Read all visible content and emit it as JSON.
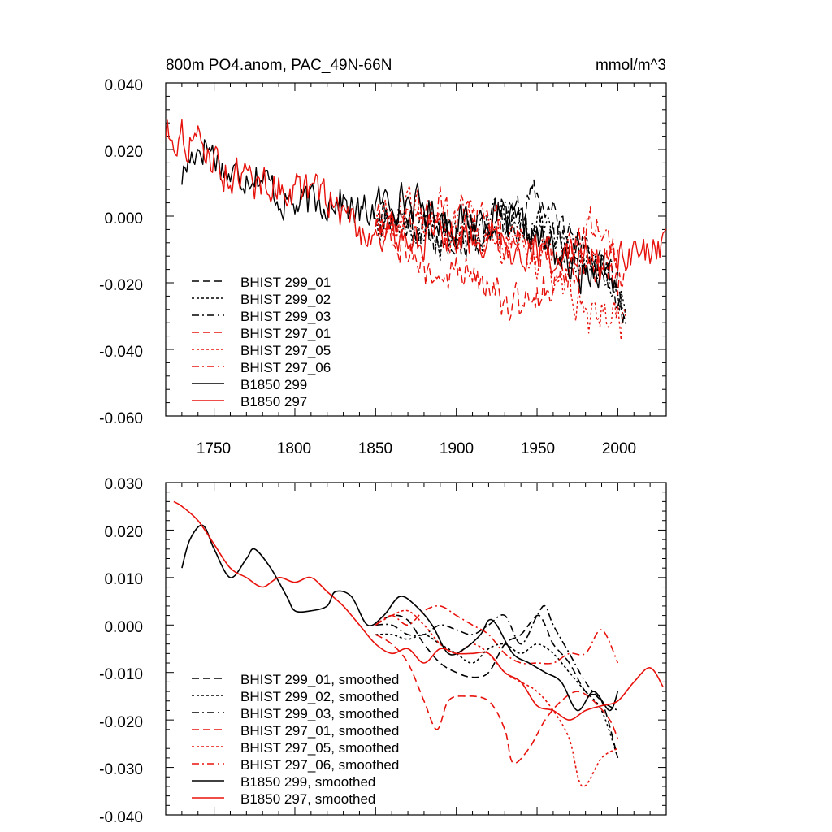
{
  "colors": {
    "black": "#000000",
    "red": "#e8120c"
  },
  "chart_data": [
    {
      "type": "line",
      "title": "800m PO4.anom, PAC_49N-66N",
      "units": "mmol/m^3",
      "xlim": [
        1720,
        2030
      ],
      "ylim": [
        -0.06,
        0.04
      ],
      "xticks": [
        1750,
        1800,
        1850,
        1900,
        1950,
        2000
      ],
      "xtick_labels": [
        "1750",
        "1800",
        "1850",
        "1900",
        "1950",
        "2000"
      ],
      "yticks": [
        -0.06,
        -0.04,
        -0.02,
        0.0,
        0.02,
        0.04
      ],
      "ytick_labels": [
        "-0.060",
        "-0.040",
        "-0.020",
        "0.000",
        "0.020",
        "0.040"
      ],
      "legend_position": "bottom-left",
      "series": [
        {
          "name": "BHIST 299_01",
          "color": "black",
          "dash": "dash",
          "seed": 11,
          "noise": 0.005,
          "x": [
            1850,
            1870,
            1890,
            1910,
            1930,
            1950,
            1970,
            1990,
            2005
          ],
          "y": [
            0.002,
            0.0,
            -0.008,
            -0.006,
            -0.002,
            0.006,
            -0.006,
            -0.016,
            -0.03
          ]
        },
        {
          "name": "BHIST 299_02",
          "color": "black",
          "dash": "dot",
          "seed": 12,
          "noise": 0.005,
          "x": [
            1850,
            1870,
            1890,
            1910,
            1930,
            1950,
            1970,
            1990,
            2005
          ],
          "y": [
            0.0,
            -0.004,
            -0.008,
            -0.004,
            -0.002,
            -0.004,
            -0.012,
            -0.016,
            -0.028
          ]
        },
        {
          "name": "BHIST 299_03",
          "color": "black",
          "dash": "dashdot",
          "seed": 13,
          "noise": 0.005,
          "x": [
            1850,
            1870,
            1890,
            1910,
            1930,
            1950,
            1970,
            1990,
            2005
          ],
          "y": [
            0.0,
            -0.002,
            -0.004,
            -0.006,
            0.0,
            -0.004,
            -0.008,
            -0.016,
            -0.026
          ]
        },
        {
          "name": "BHIST 297_01",
          "color": "red",
          "dash": "dash",
          "seed": 14,
          "noise": 0.006,
          "x": [
            1850,
            1870,
            1885,
            1900,
            1920,
            1935,
            1950,
            1970,
            1990,
            2005
          ],
          "y": [
            0.0,
            -0.008,
            -0.022,
            -0.016,
            -0.016,
            -0.028,
            -0.022,
            -0.018,
            -0.014,
            -0.022
          ]
        },
        {
          "name": "BHIST 297_05",
          "color": "red",
          "dash": "dot",
          "seed": 15,
          "noise": 0.006,
          "x": [
            1850,
            1870,
            1890,
            1910,
            1930,
            1950,
            1970,
            1980,
            1990,
            2005
          ],
          "y": [
            0.0,
            0.0,
            -0.002,
            -0.004,
            -0.008,
            -0.012,
            -0.02,
            -0.034,
            -0.03,
            -0.032
          ]
        },
        {
          "name": "BHIST 297_06",
          "color": "red",
          "dash": "dashdot",
          "seed": 16,
          "noise": 0.006,
          "x": [
            1850,
            1870,
            1890,
            1910,
            1930,
            1950,
            1970,
            1985,
            2000
          ],
          "y": [
            0.0,
            0.0,
            0.002,
            -0.002,
            -0.006,
            -0.008,
            -0.01,
            -0.002,
            -0.008
          ]
        },
        {
          "name": "B1850 299",
          "color": "black",
          "dash": "solid",
          "seed": 17,
          "noise": 0.005,
          "x": [
            1730,
            1738,
            1745,
            1760,
            1775,
            1790,
            1800,
            1815,
            1825,
            1840,
            1850,
            1865,
            1880,
            1900,
            1920,
            1940,
            1960,
            1975,
            1990,
            2000
          ],
          "y": [
            0.012,
            0.02,
            0.022,
            0.012,
            0.014,
            0.006,
            0.003,
            0.004,
            0.006,
            0.0,
            0.003,
            0.006,
            0.002,
            -0.002,
            0.0,
            -0.004,
            -0.01,
            -0.018,
            -0.014,
            -0.02
          ]
        },
        {
          "name": "B1850 297",
          "color": "red",
          "dash": "solid",
          "seed": 18,
          "noise": 0.005,
          "x": [
            1720,
            1730,
            1745,
            1760,
            1780,
            1800,
            1820,
            1840,
            1860,
            1880,
            1900,
            1920,
            1940,
            1960,
            1980,
            2000,
            2015,
            2030
          ],
          "y": [
            0.026,
            0.024,
            0.02,
            0.012,
            0.01,
            0.008,
            0.006,
            -0.004,
            -0.006,
            -0.006,
            -0.006,
            -0.006,
            -0.01,
            -0.012,
            -0.014,
            -0.014,
            -0.012,
            -0.012
          ]
        }
      ]
    },
    {
      "type": "line",
      "title": "",
      "xlim": [
        1720,
        2030
      ],
      "ylim": [
        -0.04,
        0.03
      ],
      "xticks": [
        1750,
        1800,
        1850,
        1900,
        1950,
        2000
      ],
      "yticks": [
        -0.04,
        -0.03,
        -0.02,
        -0.01,
        0.0,
        0.01,
        0.02,
        0.03
      ],
      "ytick_labels": [
        "-0.040",
        "-0.030",
        "-0.020",
        "-0.010",
        "0.000",
        "0.010",
        "0.020",
        "0.030"
      ],
      "legend_position": "bottom-left",
      "series": [
        {
          "name": "BHIST 299_01, smoothed",
          "color": "black",
          "dash": "dash",
          "x": [
            1850,
            1860,
            1870,
            1880,
            1890,
            1900,
            1910,
            1920,
            1930,
            1940,
            1950,
            1955,
            1960,
            1970,
            1980,
            1990,
            2000
          ],
          "y": [
            0.0,
            0.002,
            0.001,
            -0.004,
            -0.008,
            -0.01,
            -0.011,
            -0.01,
            -0.004,
            -0.002,
            0.002,
            0.0,
            -0.004,
            -0.008,
            -0.014,
            -0.016,
            -0.028
          ]
        },
        {
          "name": "BHIST 299_02, smoothed",
          "color": "black",
          "dash": "dot",
          "x": [
            1850,
            1860,
            1870,
            1880,
            1890,
            1900,
            1910,
            1920,
            1930,
            1940,
            1950,
            1960,
            1970,
            1980,
            1990,
            2000
          ],
          "y": [
            -0.002,
            -0.002,
            -0.003,
            -0.002,
            -0.004,
            -0.006,
            -0.008,
            -0.005,
            -0.004,
            -0.006,
            -0.004,
            -0.006,
            -0.01,
            -0.014,
            -0.018,
            -0.028
          ]
        },
        {
          "name": "BHIST 299_03, smoothed",
          "color": "black",
          "dash": "dashdot",
          "x": [
            1850,
            1860,
            1870,
            1880,
            1890,
            1900,
            1910,
            1920,
            1930,
            1940,
            1950,
            1955,
            1960,
            1970,
            1980,
            1990,
            2000
          ],
          "y": [
            0.0,
            0.0,
            -0.002,
            -0.002,
            0.0,
            -0.001,
            -0.002,
            0.0,
            0.002,
            -0.004,
            0.002,
            0.004,
            0.0,
            -0.006,
            -0.012,
            -0.016,
            -0.018
          ]
        },
        {
          "name": "BHIST 297_01, smoothed",
          "color": "red",
          "dash": "dash",
          "x": [
            1850,
            1860,
            1870,
            1880,
            1888,
            1895,
            1905,
            1920,
            1930,
            1935,
            1945,
            1955,
            1965,
            1975,
            1985,
            1995,
            2000
          ],
          "y": [
            -0.002,
            -0.004,
            -0.008,
            -0.016,
            -0.022,
            -0.016,
            -0.015,
            -0.016,
            -0.022,
            -0.029,
            -0.026,
            -0.02,
            -0.016,
            -0.014,
            -0.016,
            -0.02,
            -0.024
          ]
        },
        {
          "name": "BHIST 297_05, smoothed",
          "color": "red",
          "dash": "dot",
          "x": [
            1850,
            1860,
            1870,
            1880,
            1890,
            1900,
            1910,
            1920,
            1930,
            1940,
            1950,
            1960,
            1970,
            1978,
            1990,
            2000
          ],
          "y": [
            0.0,
            0.002,
            0.003,
            0.0,
            -0.004,
            -0.006,
            -0.004,
            -0.006,
            -0.01,
            -0.012,
            -0.014,
            -0.018,
            -0.024,
            -0.034,
            -0.028,
            -0.026
          ]
        },
        {
          "name": "BHIST 297_06, smoothed",
          "color": "red",
          "dash": "dashdot",
          "x": [
            1850,
            1860,
            1870,
            1880,
            1890,
            1900,
            1910,
            1920,
            1930,
            1940,
            1950,
            1960,
            1970,
            1980,
            1990,
            2000
          ],
          "y": [
            0.0,
            0.002,
            0.0,
            0.003,
            0.004,
            0.002,
            0.0,
            -0.002,
            -0.006,
            -0.008,
            -0.008,
            -0.008,
            -0.006,
            -0.006,
            -0.001,
            -0.008
          ]
        },
        {
          "name": "B1850 299, smoothed",
          "color": "black",
          "dash": "solid",
          "x": [
            1730,
            1735,
            1743,
            1750,
            1760,
            1770,
            1775,
            1785,
            1795,
            1800,
            1810,
            1820,
            1825,
            1835,
            1845,
            1855,
            1865,
            1875,
            1885,
            1895,
            1905,
            1915,
            1920,
            1925,
            1935,
            1945,
            1955,
            1965,
            1975,
            1985,
            1995,
            2000
          ],
          "y": [
            0.012,
            0.018,
            0.021,
            0.016,
            0.01,
            0.014,
            0.016,
            0.012,
            0.006,
            0.003,
            0.003,
            0.004,
            0.007,
            0.006,
            0.0,
            0.002,
            0.006,
            0.004,
            0.0,
            -0.006,
            -0.005,
            -0.002,
            0.001,
            0.0,
            -0.006,
            -0.008,
            -0.01,
            -0.012,
            -0.018,
            -0.014,
            -0.018,
            -0.014
          ]
        },
        {
          "name": "B1850 297, smoothed",
          "color": "red",
          "dash": "solid",
          "x": [
            1725,
            1730,
            1740,
            1750,
            1760,
            1770,
            1780,
            1790,
            1800,
            1810,
            1820,
            1830,
            1840,
            1850,
            1860,
            1870,
            1880,
            1890,
            1900,
            1910,
            1920,
            1930,
            1940,
            1950,
            1960,
            1970,
            1980,
            1990,
            2000,
            2010,
            2020,
            2028
          ],
          "y": [
            0.026,
            0.025,
            0.022,
            0.017,
            0.012,
            0.01,
            0.008,
            0.01,
            0.009,
            0.01,
            0.007,
            0.004,
            0.0,
            -0.004,
            -0.006,
            -0.005,
            -0.008,
            -0.005,
            -0.006,
            -0.006,
            -0.006,
            -0.01,
            -0.012,
            -0.017,
            -0.018,
            -0.02,
            -0.018,
            -0.017,
            -0.016,
            -0.012,
            -0.009,
            -0.013
          ]
        }
      ]
    }
  ]
}
